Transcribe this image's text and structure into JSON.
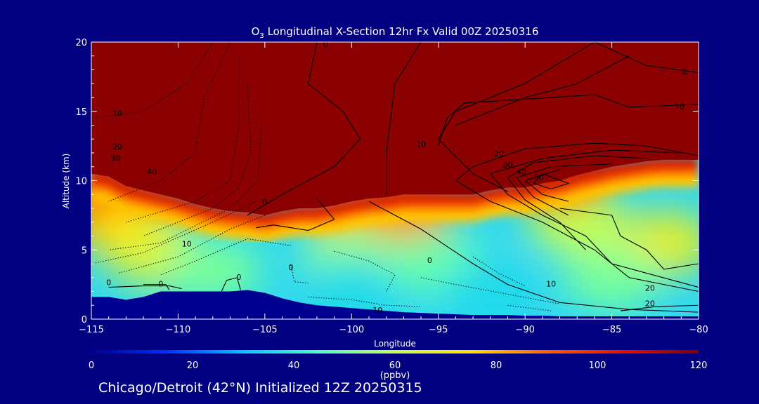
{
  "chart_data": {
    "type": "heatmap",
    "title_prefix": "O",
    "title_subscript": "3",
    "title_rest": " Longitudinal X-Section 12hr  Fx Valid 00Z 20250316",
    "xlabel": "Longitude",
    "ylabel": "Altitude (km)",
    "xlim": [
      -115,
      -80
    ],
    "ylim": [
      0,
      20
    ],
    "x_ticks": [
      -115,
      -110,
      -105,
      -100,
      -95,
      -90,
      -85,
      -80
    ],
    "x_tick_labels": [
      "−115",
      "−110",
      "−105",
      "−100",
      "−95",
      "−90",
      "−85",
      "−80"
    ],
    "y_ticks": [
      0,
      5,
      10,
      15,
      20
    ],
    "y_tick_labels": [
      "0",
      "5",
      "10",
      "15",
      "20"
    ],
    "colorbar": {
      "ticks": [
        0,
        20,
        40,
        60,
        80,
        100,
        120
      ],
      "tick_labels": [
        "0",
        "20",
        "40",
        "60",
        "80",
        "100",
        "120"
      ],
      "unit": "(ppbv)",
      "colors": [
        "#000090",
        "#0030ff",
        "#00c8ff",
        "#50ffc0",
        "#c8ff50",
        "#ffe000",
        "#ff6000",
        "#e01000",
        "#800000"
      ]
    },
    "colorscale_fill_color": "#8b0000",
    "tropopause_altitude_km": [
      [
        -115,
        10.5
      ],
      [
        -114,
        10.3
      ],
      [
        -113,
        9.6
      ],
      [
        -112,
        9.3
      ],
      [
        -111,
        9.0
      ],
      [
        -110,
        8.7
      ],
      [
        -109,
        8.3
      ],
      [
        -108,
        8.0
      ],
      [
        -107,
        7.8
      ],
      [
        -106,
        7.7
      ],
      [
        -105,
        7.5
      ],
      [
        -104,
        7.8
      ],
      [
        -103,
        8.0
      ],
      [
        -102,
        8.0
      ],
      [
        -101,
        8.2
      ],
      [
        -100,
        8.5
      ],
      [
        -99,
        8.7
      ],
      [
        -98,
        8.8
      ],
      [
        -97,
        9.0
      ],
      [
        -96,
        9.0
      ],
      [
        -95,
        9.0
      ],
      [
        -94,
        9.0
      ],
      [
        -93,
        9.0
      ],
      [
        -92,
        9.3
      ],
      [
        -91,
        9.5
      ],
      [
        -90,
        9.5
      ],
      [
        -89,
        9.8
      ],
      [
        -88,
        10.0
      ],
      [
        -87,
        10.4
      ],
      [
        -86,
        10.7
      ],
      [
        -85,
        11.0
      ],
      [
        -84,
        11.2
      ],
      [
        -83,
        11.4
      ],
      [
        -82,
        11.5
      ],
      [
        -81,
        11.5
      ],
      [
        -80,
        11.5
      ]
    ],
    "terrain_altitude_km": [
      [
        -115,
        1.6
      ],
      [
        -114,
        1.6
      ],
      [
        -113,
        1.4
      ],
      [
        -112,
        1.6
      ],
      [
        -111,
        2.0
      ],
      [
        -110,
        2.0
      ],
      [
        -109,
        2.0
      ],
      [
        -108,
        2.0
      ],
      [
        -107,
        2.0
      ],
      [
        -106,
        2.1
      ],
      [
        -105,
        1.9
      ],
      [
        -104,
        1.5
      ],
      [
        -103,
        1.2
      ],
      [
        -102,
        1.0
      ],
      [
        -101,
        0.9
      ],
      [
        -100,
        0.8
      ],
      [
        -99,
        0.7
      ],
      [
        -98,
        0.6
      ],
      [
        -97,
        0.5
      ],
      [
        -96,
        0.45
      ],
      [
        -95,
        0.4
      ],
      [
        -94,
        0.35
      ],
      [
        -93,
        0.3
      ],
      [
        -92,
        0.3
      ],
      [
        -91,
        0.3
      ],
      [
        -90,
        0.25
      ],
      [
        -89,
        0.25
      ],
      [
        -88,
        0.2
      ],
      [
        -87,
        0.2
      ],
      [
        -86,
        0.2
      ],
      [
        -85,
        0.2
      ],
      [
        -84,
        0.2
      ],
      [
        -83,
        0.2
      ],
      [
        -82,
        0.2
      ],
      [
        -81,
        0.2
      ],
      [
        -80,
        0.2
      ]
    ],
    "ozone_features": [
      {
        "lon": -114.5,
        "alt": 9.0,
        "ppbv": 95
      },
      {
        "lon": -113.5,
        "alt": 7.5,
        "ppbv": 85
      },
      {
        "lon": -112.5,
        "alt": 6.0,
        "ppbv": 75
      },
      {
        "lon": -111,
        "alt": 4.5,
        "ppbv": 65
      },
      {
        "lon": -108,
        "alt": 3.5,
        "ppbv": 50
      },
      {
        "lon": -99.5,
        "alt": 7.0,
        "ppbv": 80
      },
      {
        "lon": -97,
        "alt": 8.0,
        "ppbv": 85
      },
      {
        "lon": -100,
        "alt": 4.5,
        "ppbv": 52
      },
      {
        "lon": -95,
        "alt": 4.0,
        "ppbv": 48
      },
      {
        "lon": -100,
        "alt": 2.0,
        "ppbv": 35
      },
      {
        "lon": -92,
        "alt": 2.0,
        "ppbv": 35
      },
      {
        "lon": -87,
        "alt": 7.0,
        "ppbv": 60
      },
      {
        "lon": -82,
        "alt": 5.5,
        "ppbv": 68
      },
      {
        "lon": -85,
        "alt": 3.0,
        "ppbv": 50
      },
      {
        "lon": -88,
        "alt": 10.5,
        "ppbv": 100
      }
    ],
    "contour_labels": [
      {
        "lon": -101.5,
        "alt": 19.8,
        "text": "0"
      },
      {
        "lon": -113.5,
        "alt": 14.8,
        "text": "10"
      },
      {
        "lon": -113.5,
        "alt": 12.4,
        "text": "20"
      },
      {
        "lon": -113.6,
        "alt": 11.6,
        "text": "30"
      },
      {
        "lon": -111.5,
        "alt": 10.6,
        "text": "40"
      },
      {
        "lon": -105,
        "alt": 8.4,
        "text": "0"
      },
      {
        "lon": -109.5,
        "alt": 5.4,
        "text": "10"
      },
      {
        "lon": -114,
        "alt": 2.6,
        "text": "0"
      },
      {
        "lon": -111,
        "alt": 2.5,
        "text": "0"
      },
      {
        "lon": -106.5,
        "alt": 3.0,
        "text": "0"
      },
      {
        "lon": -103.5,
        "alt": 3.7,
        "text": "0"
      },
      {
        "lon": -95.5,
        "alt": 4.2,
        "text": "0"
      },
      {
        "lon": -98.5,
        "alt": 0.6,
        "text": "10"
      },
      {
        "lon": -96,
        "alt": 12.6,
        "text": "10"
      },
      {
        "lon": -91.5,
        "alt": 11.9,
        "text": "20"
      },
      {
        "lon": -91,
        "alt": 11.1,
        "text": "30"
      },
      {
        "lon": -90.2,
        "alt": 10.6,
        "text": "40"
      },
      {
        "lon": -89.2,
        "alt": 10.2,
        "text": "50"
      },
      {
        "lon": -80.8,
        "alt": 17.8,
        "text": "0"
      },
      {
        "lon": -81.1,
        "alt": 15.3,
        "text": "10"
      },
      {
        "lon": -88.5,
        "alt": 2.5,
        "text": "10"
      },
      {
        "lon": -82.8,
        "alt": 2.2,
        "text": "20"
      },
      {
        "lon": -82.8,
        "alt": 1.1,
        "text": "20"
      }
    ],
    "solid_contours": [
      [
        [
          -102,
          20
        ],
        [
          -102.5,
          17
        ],
        [
          -100.5,
          15
        ],
        [
          -99.5,
          13
        ],
        [
          -101,
          11
        ],
        [
          -104,
          9
        ],
        [
          -106,
          7.5
        ]
      ],
      [
        [
          -96,
          20
        ],
        [
          -97.5,
          17
        ],
        [
          -98,
          12
        ],
        [
          -98,
          9
        ]
      ],
      [
        [
          -86,
          20
        ],
        [
          -90,
          17
        ],
        [
          -94,
          15
        ],
        [
          -95,
          13
        ],
        [
          -93,
          10.5
        ],
        [
          -91,
          9.2
        ]
      ],
      [
        [
          -84,
          19
        ],
        [
          -87,
          17
        ],
        [
          -90,
          16
        ],
        [
          -94,
          14
        ]
      ],
      [
        [
          -80,
          15.5
        ],
        [
          -84,
          15.3
        ],
        [
          -86,
          16.2
        ],
        [
          -93.5,
          15.6
        ],
        [
          -94.5,
          14.5
        ],
        [
          -95,
          12.5
        ]
      ],
      [
        [
          -80,
          17.8
        ],
        [
          -83,
          18.3
        ],
        [
          -86,
          20
        ]
      ],
      [
        [
          -80,
          11.8
        ],
        [
          -83,
          12.5
        ],
        [
          -86,
          12.7
        ],
        [
          -90,
          12.3
        ],
        [
          -93,
          11
        ],
        [
          -94,
          10
        ],
        [
          -92,
          8.5
        ],
        [
          -89,
          7
        ],
        [
          -86,
          5
        ],
        [
          -84,
          3
        ],
        [
          -80,
          2
        ]
      ],
      [
        [
          -81,
          12
        ],
        [
          -85,
          12.2
        ],
        [
          -89,
          11.6
        ],
        [
          -92,
          10.5
        ],
        [
          -91,
          9
        ],
        [
          -89,
          7.5
        ],
        [
          -86.5,
          6
        ],
        [
          -85,
          4
        ],
        [
          -80,
          2.3
        ]
      ],
      [
        [
          -83,
          11.6
        ],
        [
          -86,
          11.8
        ],
        [
          -89.5,
          11.3
        ],
        [
          -91,
          10.2
        ],
        [
          -90,
          8.6
        ],
        [
          -88,
          7
        ],
        [
          -86.5,
          5
        ]
      ],
      [
        [
          -85,
          11.2
        ],
        [
          -88.5,
          11.0
        ],
        [
          -90.5,
          10.2
        ],
        [
          -89.5,
          8.8
        ],
        [
          -87.5,
          7.5
        ]
      ],
      [
        [
          -88,
          10.8
        ],
        [
          -90,
          10
        ],
        [
          -89,
          9
        ],
        [
          -87.5,
          8.5
        ]
      ],
      [
        [
          -89,
          10.5
        ],
        [
          -89.5,
          9.8
        ],
        [
          -88.5,
          9.4
        ],
        [
          -87.5,
          9.8
        ],
        [
          -89,
          10.5
        ]
      ],
      [
        [
          -80,
          0.5
        ],
        [
          -84,
          0.7
        ],
        [
          -88,
          1.2
        ],
        [
          -91,
          2.5
        ],
        [
          -93,
          4
        ],
        [
          -96,
          6.5
        ],
        [
          -99,
          8.5
        ]
      ],
      [
        [
          -80,
          4
        ],
        [
          -82,
          3.6
        ],
        [
          -83,
          5
        ],
        [
          -84.5,
          6
        ],
        [
          -85,
          7.5
        ],
        [
          -88,
          8
        ]
      ],
      [
        [
          -80,
          1
        ],
        [
          -82.5,
          0.9
        ],
        [
          -84.5,
          0.6
        ]
      ],
      [
        [
          -102,
          8.7
        ],
        [
          -101,
          7.2
        ],
        [
          -102.5,
          6.4
        ],
        [
          -104.5,
          6.8
        ],
        [
          -105.5,
          6.6
        ]
      ],
      [
        [
          -114,
          2.3
        ],
        [
          -112,
          2.4
        ],
        [
          -110.5,
          2.4
        ],
        [
          -109.8,
          2.2
        ]
      ],
      [
        [
          -107.5,
          2.0
        ],
        [
          -107.2,
          2.8
        ],
        [
          -106.6,
          3.0
        ],
        [
          -106.4,
          2.1
        ]
      ],
      [
        [
          -110.5,
          2.1
        ],
        [
          -110.7,
          2.5
        ],
        [
          -112,
          2.5
        ]
      ]
    ],
    "dotted_contours": [
      [
        [
          -108,
          20
        ],
        [
          -109.5,
          17
        ],
        [
          -112,
          15
        ],
        [
          -115,
          14.5
        ]
      ],
      [
        [
          -107,
          20
        ],
        [
          -108.5,
          16
        ],
        [
          -109,
          12
        ],
        [
          -111,
          10
        ],
        [
          -114,
          8.5
        ]
      ],
      [
        [
          -106.5,
          19
        ],
        [
          -106.5,
          14
        ],
        [
          -107,
          10
        ],
        [
          -109,
          8.5
        ],
        [
          -113,
          7
        ]
      ],
      [
        [
          -106,
          17
        ],
        [
          -105.8,
          12
        ],
        [
          -106.5,
          9.5
        ],
        [
          -108,
          8
        ],
        [
          -112,
          6
        ]
      ],
      [
        [
          -105.2,
          14
        ],
        [
          -105.4,
          10
        ],
        [
          -107,
          8
        ],
        [
          -111,
          5.5
        ],
        [
          -114,
          5
        ]
      ],
      [
        [
          -105.5,
          8.5
        ],
        [
          -108,
          7
        ],
        [
          -112,
          4.8
        ],
        [
          -115,
          4
        ]
      ],
      [
        [
          -105,
          7.5
        ],
        [
          -107,
          6.5
        ],
        [
          -110,
          4.5
        ],
        [
          -113.5,
          3.3
        ]
      ],
      [
        [
          -103.5,
          5.3
        ],
        [
          -106,
          5.8
        ],
        [
          -109,
          4.2
        ],
        [
          -111,
          3.2
        ]
      ],
      [
        [
          -103.5,
          3.9
        ],
        [
          -103.3,
          2.7
        ],
        [
          -102.5,
          2.6
        ]
      ],
      [
        [
          -101,
          4.9
        ],
        [
          -99,
          4.2
        ],
        [
          -97.5,
          3.2
        ],
        [
          -98,
          2
        ]
      ],
      [
        [
          -102.5,
          1.6
        ],
        [
          -100,
          1.4
        ],
        [
          -98,
          1.0
        ],
        [
          -96,
          0.9
        ]
      ],
      [
        [
          -96,
          3
        ],
        [
          -94,
          2.5
        ],
        [
          -91,
          1.8
        ],
        [
          -88,
          1.1
        ]
      ],
      [
        [
          -93,
          4.5
        ],
        [
          -91.5,
          3.3
        ],
        [
          -90,
          2.4
        ]
      ],
      [
        [
          -91,
          1.0
        ],
        [
          -88.5,
          0.6
        ]
      ]
    ]
  },
  "caption": "Chicago/Detroit (42°N) Initialized 12Z 20250315"
}
